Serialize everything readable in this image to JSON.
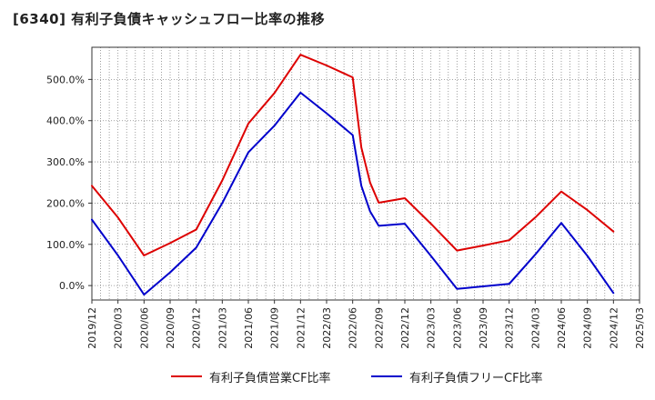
{
  "title": "[6340]  有利子負債キャッシュフロー比率の推移",
  "chart_data": {
    "type": "line",
    "title": "[6340]  有利子負債キャッシュフロー比率の推移",
    "xlabel": "",
    "ylabel": "",
    "ylim": [
      -35,
      578
    ],
    "yticks": [
      0,
      100,
      200,
      300,
      400,
      500
    ],
    "ytick_labels": [
      "0.0%",
      "100.0%",
      "200.0%",
      "300.0%",
      "400.0%",
      "500.0%"
    ],
    "xticks": [
      "2019/12",
      "2020/03",
      "2020/06",
      "2020/09",
      "2020/12",
      "2021/03",
      "2021/06",
      "2021/09",
      "2021/12",
      "2022/03",
      "2022/06",
      "2022/09",
      "2022/12",
      "2023/03",
      "2023/06",
      "2023/09",
      "2023/12",
      "2024/03",
      "2024/06",
      "2024/09",
      "2024/12",
      "2025/03"
    ],
    "grid": true,
    "legend_position": "bottom",
    "series": [
      {
        "name": "有利子負債営業CF比率",
        "color": "#dd0000",
        "x": [
          "2019/12",
          "2020/03",
          "2020/06",
          "2020/09",
          "2020/12",
          "2021/03",
          "2021/06",
          "2021/09",
          "2021/12",
          "2022/03",
          "2022/06",
          "2022/07",
          "2022/08",
          "2022/09",
          "2022/12",
          "2023/03",
          "2023/06",
          "2023/09",
          "2023/12",
          "2024/03",
          "2024/06",
          "2024/09",
          "2024/12"
        ],
        "values": [
          242,
          165,
          73,
          103,
          136,
          255,
          393,
          467,
          560,
          534,
          505,
          335,
          250,
          201,
          212,
          150,
          85,
          97,
          110,
          165,
          228,
          183,
          131
        ]
      },
      {
        "name": "有利子負債フリーCF比率",
        "color": "#0000cc",
        "x": [
          "2019/12",
          "2020/03",
          "2020/06",
          "2020/09",
          "2020/12",
          "2021/03",
          "2021/06",
          "2021/09",
          "2021/12",
          "2022/03",
          "2022/06",
          "2022/07",
          "2022/08",
          "2022/09",
          "2022/12",
          "2023/03",
          "2023/06",
          "2023/09",
          "2023/12",
          "2024/03",
          "2024/06",
          "2024/09",
          "2024/12"
        ],
        "values": [
          160,
          73,
          -22,
          32,
          92,
          200,
          323,
          388,
          468,
          418,
          365,
          242,
          180,
          145,
          150,
          72,
          -8,
          -2,
          4,
          75,
          152,
          72,
          -18
        ]
      }
    ]
  }
}
